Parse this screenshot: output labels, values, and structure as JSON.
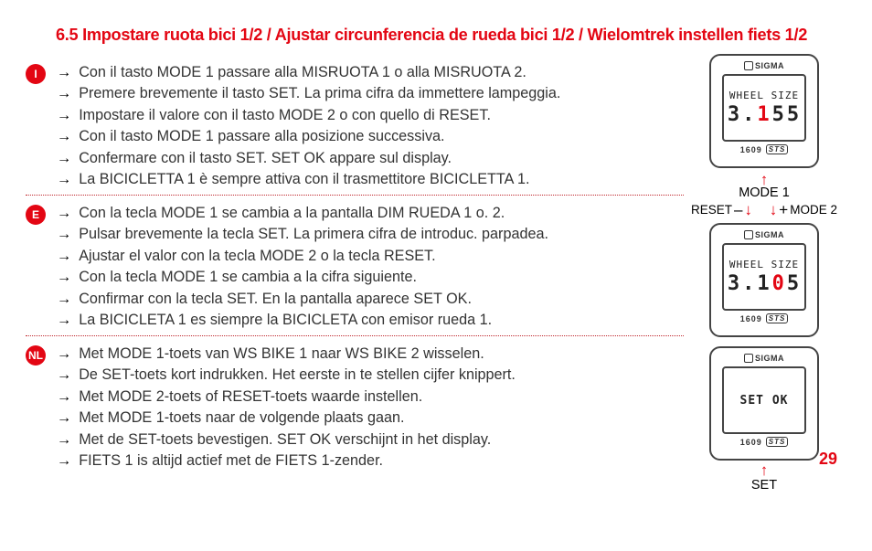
{
  "title": "6.5 Impostare ruota bici 1/2 / Ajustar circunferencia de rueda bici 1/2 / Wielomtrek instellen fiets 1/2",
  "page_number": "29",
  "sections": [
    {
      "lang": "I",
      "steps": [
        "Con il tasto MODE 1 passare alla MISRUOTA 1 o alla MISRUOTA 2.",
        "Premere brevemente il tasto SET. La prima cifra da immettere lampeggia.",
        "Impostare il valore con il tasto MODE 2 o con quello di RESET.",
        "Con il tasto MODE 1 passare alla posizione successiva.",
        "Confermare con il tasto SET. SET OK appare sul display.",
        "La BICICLETTA 1 è sempre attiva con il trasmettitore BICICLETTA 1."
      ]
    },
    {
      "lang": "E",
      "steps": [
        "Con la tecla MODE 1 se cambia a la pantalla DIM RUEDA 1 o. 2.",
        "Pulsar brevemente la tecla SET. La primera cifra de introduc. parpadea.",
        "Ajustar el valor con la tecla MODE 2 o la tecla RESET.",
        "Con la tecla MODE 1 se cambia a la cifra siguiente.",
        "Confirmar con la tecla SET. En la pantalla aparece SET OK.",
        "La BICICLETA 1 es siempre la BICICLETA con emisor rueda 1."
      ]
    },
    {
      "lang": "NL",
      "steps": [
        "Met MODE 1-toets van WS BIKE 1 naar WS BIKE 2 wisselen.",
        "De SET-toets kort indrukken. Het eerste in te stellen cijfer knippert.",
        "Met MODE 2-toets of RESET-toets waarde instellen.",
        "Met MODE 1-toets naar de volgende plaats gaan.",
        "Met de SET-toets bevestigen. SET OK verschijnt in het display.",
        "FIETS 1 is altijd actief met de FIETS 1-zender."
      ]
    }
  ],
  "devices": {
    "brand": "SIGMA",
    "model": "1609",
    "model_suffix": "STS",
    "screens": [
      {
        "line1": "WHEEL SIZE",
        "digits": [
          "3",
          ".",
          "1",
          "5",
          "5"
        ],
        "highlight_index": 2
      },
      {
        "line1": "WHEEL SIZE",
        "digits": [
          "3",
          ".",
          "1",
          "0",
          "5"
        ],
        "highlight_index": 3
      },
      {
        "line1": "",
        "digits": [],
        "center_text": "SET OK"
      }
    ]
  },
  "labels": {
    "mode1": "MODE 1",
    "reset": "RESET",
    "mode2": "MODE 2",
    "set": "SET",
    "minus": "–",
    "plus": "+"
  },
  "colors": {
    "accent": "#e30613",
    "text": "#333333"
  }
}
